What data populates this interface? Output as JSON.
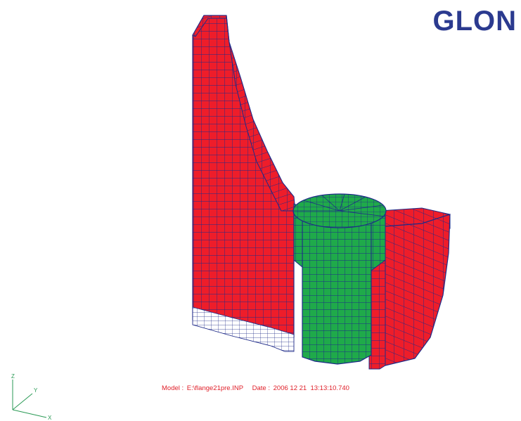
{
  "logo": {
    "text": "GLON"
  },
  "model_info": {
    "model_label": "Model :",
    "model_path": "E:\\flange21pre.INP",
    "date_label": "Date :",
    "date_value": "2006 12 21  13:13:10.740"
  },
  "axes": {
    "z": "Z",
    "y": "Y",
    "x": "X"
  },
  "colors": {
    "flange_red": "#ee1d2a",
    "bolt_green": "#1faa4a",
    "mesh_line": "#1e2a88",
    "logo_blue": "#2b3a8f",
    "info_red": "#e0202a",
    "triad_green": "#2a9a55"
  }
}
